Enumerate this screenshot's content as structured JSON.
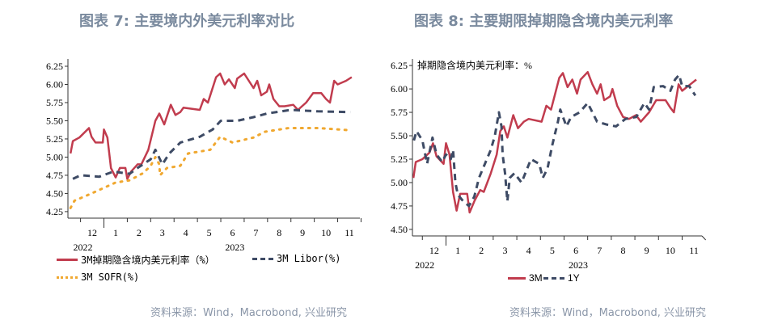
{
  "colors": {
    "title": "#7a8a9e",
    "red": "#c13c4e",
    "navy": "#3e4b65",
    "orange": "#f0a830"
  },
  "left": {
    "title": "图表 7: 主要境内外美元利率对比",
    "source": "资料来源：Wind，Macrobond, 兴业研究"
  },
  "right": {
    "title": "图表 8: 主要期限掉期隐含境内美元利率",
    "source": "资料来源：Wind，Macrobond, 兴业研究"
  },
  "chart_data": [
    {
      "type": "line",
      "title": "图表 7: 主要境内外美元利率对比",
      "xlabel": "",
      "ylabel": "",
      "x_unit": "months since Nov 2022 start",
      "xlim": [
        0.46,
        12.95
      ],
      "ylim": [
        4.16,
        6.35
      ],
      "yticks": [
        "4.25",
        "4.50",
        "4.75",
        "5.00",
        "5.25",
        "5.50",
        "5.75",
        "6.00",
        "6.25"
      ],
      "xtick_labels": [
        "12",
        "1",
        "2",
        "3",
        "4",
        "5",
        "6",
        "7",
        "8",
        "9",
        "10",
        "11"
      ],
      "year_labels": [
        {
          "label": "2022",
          "x": 1.1
        },
        {
          "label": "2023",
          "x": 7.6
        }
      ],
      "series": [
        {
          "name": "3M掉期隐含境内美元利率（%）",
          "style": "solid",
          "color": "#c13c4e",
          "points": [
            [
              0.57,
              5.05
            ],
            [
              0.67,
              5.22
            ],
            [
              0.95,
              5.27
            ],
            [
              1.36,
              5.4
            ],
            [
              1.47,
              5.28
            ],
            [
              1.64,
              5.2
            ],
            [
              1.95,
              5.2
            ],
            [
              2.0,
              5.38
            ],
            [
              2.15,
              5.27
            ],
            [
              2.3,
              4.85
            ],
            [
              2.5,
              4.72
            ],
            [
              2.68,
              4.85
            ],
            [
              2.92,
              4.85
            ],
            [
              3.0,
              4.7
            ],
            [
              3.16,
              4.8
            ],
            [
              3.44,
              4.9
            ],
            [
              3.6,
              4.9
            ],
            [
              3.9,
              5.1
            ],
            [
              4.2,
              5.5
            ],
            [
              4.37,
              5.6
            ],
            [
              4.58,
              5.45
            ],
            [
              4.86,
              5.72
            ],
            [
              5.06,
              5.58
            ],
            [
              5.27,
              5.62
            ],
            [
              5.4,
              5.68
            ],
            [
              6.1,
              5.65
            ],
            [
              6.27,
              5.8
            ],
            [
              6.45,
              5.75
            ],
            [
              6.8,
              6.1
            ],
            [
              6.97,
              6.15
            ],
            [
              7.17,
              6.0
            ],
            [
              7.35,
              6.07
            ],
            [
              7.6,
              5.95
            ],
            [
              7.7,
              6.08
            ],
            [
              8.0,
              6.15
            ],
            [
              8.2,
              6.05
            ],
            [
              8.4,
              5.95
            ],
            [
              8.56,
              6.05
            ],
            [
              8.73,
              5.85
            ],
            [
              8.97,
              5.9
            ],
            [
              9.07,
              6.0
            ],
            [
              9.25,
              5.8
            ],
            [
              9.5,
              5.7
            ],
            [
              9.73,
              5.7
            ],
            [
              10.1,
              5.72
            ],
            [
              10.3,
              5.65
            ],
            [
              10.65,
              5.75
            ],
            [
              10.95,
              5.88
            ],
            [
              11.3,
              5.88
            ],
            [
              11.5,
              5.8
            ],
            [
              11.67,
              5.75
            ],
            [
              11.85,
              6.05
            ],
            [
              12.0,
              6.0
            ],
            [
              12.36,
              6.05
            ],
            [
              12.6,
              6.1
            ]
          ]
        },
        {
          "name": "3M Libor(%)",
          "style": "dash",
          "color": "#3e4b65",
          "points": [
            [
              0.67,
              4.7
            ],
            [
              1.0,
              4.75
            ],
            [
              1.8,
              4.73
            ],
            [
              2.4,
              4.8
            ],
            [
              3.1,
              4.77
            ],
            [
              3.44,
              4.85
            ],
            [
              4.0,
              4.97
            ],
            [
              4.2,
              5.1
            ],
            [
              4.5,
              4.9
            ],
            [
              4.8,
              5.05
            ],
            [
              5.27,
              5.2
            ],
            [
              6.1,
              5.28
            ],
            [
              6.65,
              5.38
            ],
            [
              7.0,
              5.5
            ],
            [
              7.7,
              5.5
            ],
            [
              8.4,
              5.55
            ],
            [
              8.97,
              5.6
            ],
            [
              10.0,
              5.65
            ],
            [
              11.15,
              5.63
            ],
            [
              12.54,
              5.62
            ]
          ]
        },
        {
          "name": "3M SOFR(%)",
          "style": "dot",
          "color": "#f0a830",
          "points": [
            [
              0.57,
              4.3
            ],
            [
              0.74,
              4.4
            ],
            [
              1.47,
              4.5
            ],
            [
              2.5,
              4.65
            ],
            [
              3.1,
              4.68
            ],
            [
              3.68,
              4.78
            ],
            [
              4.0,
              4.88
            ],
            [
              4.2,
              5.0
            ],
            [
              4.37,
              4.9
            ],
            [
              4.4,
              4.75
            ],
            [
              4.7,
              4.85
            ],
            [
              5.27,
              4.88
            ],
            [
              5.6,
              5.05
            ],
            [
              6.55,
              5.1
            ],
            [
              6.97,
              5.28
            ],
            [
              7.5,
              5.2
            ],
            [
              8.4,
              5.27
            ],
            [
              8.9,
              5.35
            ],
            [
              9.9,
              5.4
            ],
            [
              11.15,
              5.4
            ],
            [
              12.54,
              5.37
            ]
          ]
        }
      ]
    },
    {
      "type": "line",
      "title": "图表 8: 主要期限掉期隐含境内美元利率",
      "annotation": "掉期隐含境内美元利率：%",
      "x_unit": "months since Nov 2022 start",
      "xlim": [
        0.58,
        12.84
      ],
      "ylim": [
        4.43,
        6.32
      ],
      "yticks": [
        "4.50",
        "4.75",
        "5.00",
        "5.25",
        "5.50",
        "5.75",
        "6.00",
        "6.25"
      ],
      "xtick_labels": [
        "12",
        "1",
        "2",
        "3",
        "4",
        "5",
        "6",
        "7",
        "8",
        "9",
        "10",
        "11"
      ],
      "year_labels": [
        {
          "label": "2022",
          "x": 1.1
        },
        {
          "label": "2023",
          "x": 7.6
        }
      ],
      "series": [
        {
          "name": "3M",
          "style": "solid",
          "color": "#c13c4e",
          "points": [
            [
              0.62,
              5.05
            ],
            [
              0.72,
              5.22
            ],
            [
              1.0,
              5.25
            ],
            [
              1.3,
              5.32
            ],
            [
              1.45,
              5.42
            ],
            [
              1.6,
              5.28
            ],
            [
              1.9,
              5.2
            ],
            [
              2.0,
              5.42
            ],
            [
              2.15,
              5.3
            ],
            [
              2.3,
              4.9
            ],
            [
              2.45,
              4.7
            ],
            [
              2.6,
              4.88
            ],
            [
              2.9,
              4.88
            ],
            [
              3.0,
              4.68
            ],
            [
              3.2,
              4.8
            ],
            [
              3.45,
              4.92
            ],
            [
              3.6,
              4.9
            ],
            [
              3.9,
              5.1
            ],
            [
              4.15,
              5.3
            ],
            [
              4.3,
              5.55
            ],
            [
              4.45,
              5.6
            ],
            [
              4.6,
              5.48
            ],
            [
              4.85,
              5.72
            ],
            [
              5.05,
              5.58
            ],
            [
              5.3,
              5.65
            ],
            [
              5.5,
              5.68
            ],
            [
              6.05,
              5.65
            ],
            [
              6.25,
              5.82
            ],
            [
              6.45,
              5.78
            ],
            [
              6.8,
              6.12
            ],
            [
              6.95,
              6.17
            ],
            [
              7.15,
              6.02
            ],
            [
              7.35,
              6.1
            ],
            [
              7.55,
              5.95
            ],
            [
              7.7,
              6.1
            ],
            [
              8.0,
              6.18
            ],
            [
              8.2,
              6.05
            ],
            [
              8.4,
              5.95
            ],
            [
              8.55,
              6.05
            ],
            [
              8.7,
              5.88
            ],
            [
              8.95,
              5.92
            ],
            [
              9.05,
              6.0
            ],
            [
              9.25,
              5.82
            ],
            [
              9.5,
              5.7
            ],
            [
              9.75,
              5.68
            ],
            [
              10.05,
              5.72
            ],
            [
              10.25,
              5.65
            ],
            [
              10.6,
              5.75
            ],
            [
              10.9,
              5.88
            ],
            [
              11.3,
              5.88
            ],
            [
              11.5,
              5.8
            ],
            [
              11.65,
              5.75
            ],
            [
              11.85,
              6.05
            ],
            [
              12.0,
              5.98
            ],
            [
              12.35,
              6.05
            ],
            [
              12.6,
              6.1
            ]
          ]
        },
        {
          "name": "1Y",
          "style": "dash",
          "color": "#3e4b65",
          "points": [
            [
              0.64,
              5.45
            ],
            [
              0.75,
              5.55
            ],
            [
              1.0,
              5.45
            ],
            [
              1.2,
              5.2
            ],
            [
              1.43,
              5.48
            ],
            [
              1.6,
              5.3
            ],
            [
              1.84,
              5.22
            ],
            [
              2.0,
              5.3
            ],
            [
              2.2,
              5.25
            ],
            [
              2.3,
              5.35
            ],
            [
              2.4,
              5.0
            ],
            [
              2.5,
              4.87
            ],
            [
              2.73,
              4.8
            ],
            [
              2.97,
              4.75
            ],
            [
              3.2,
              4.85
            ],
            [
              3.4,
              5.05
            ],
            [
              3.65,
              5.2
            ],
            [
              3.9,
              5.35
            ],
            [
              4.07,
              5.5
            ],
            [
              4.24,
              5.75
            ],
            [
              4.35,
              5.6
            ],
            [
              4.4,
              5.3
            ],
            [
              4.5,
              5.1
            ],
            [
              4.6,
              4.8
            ],
            [
              4.7,
              5.05
            ],
            [
              4.9,
              5.1
            ],
            [
              5.2,
              5.0
            ],
            [
              5.44,
              5.15
            ],
            [
              5.6,
              5.25
            ],
            [
              5.95,
              5.2
            ],
            [
              6.1,
              5.05
            ],
            [
              6.3,
              5.15
            ],
            [
              6.5,
              5.4
            ],
            [
              6.74,
              5.65
            ],
            [
              6.84,
              5.78
            ],
            [
              7.1,
              5.6
            ],
            [
              7.3,
              5.7
            ],
            [
              7.66,
              5.75
            ],
            [
              8.0,
              5.85
            ],
            [
              8.2,
              5.75
            ],
            [
              8.4,
              5.65
            ],
            [
              8.8,
              5.62
            ],
            [
              9.2,
              5.6
            ],
            [
              9.6,
              5.68
            ],
            [
              10.06,
              5.7
            ],
            [
              10.4,
              5.85
            ],
            [
              10.6,
              5.78
            ],
            [
              10.8,
              6.02
            ],
            [
              11.2,
              6.03
            ],
            [
              11.5,
              5.98
            ],
            [
              11.7,
              6.1
            ],
            [
              11.87,
              6.15
            ],
            [
              12.0,
              6.03
            ],
            [
              12.3,
              6.03
            ],
            [
              12.56,
              5.93
            ]
          ]
        }
      ]
    }
  ]
}
